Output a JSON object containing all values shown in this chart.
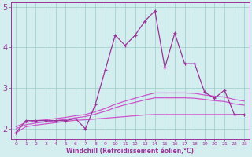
{
  "x": [
    0,
    1,
    2,
    3,
    4,
    5,
    6,
    7,
    8,
    9,
    10,
    11,
    12,
    13,
    14,
    15,
    16,
    17,
    18,
    19,
    20,
    21,
    22,
    23
  ],
  "line_spiky": [
    1.9,
    2.2,
    2.2,
    2.2,
    2.2,
    2.2,
    2.25,
    2.0,
    2.6,
    3.45,
    4.3,
    4.05,
    4.3,
    4.65,
    4.9,
    3.5,
    4.35,
    3.6,
    3.6,
    2.9,
    2.75,
    2.95,
    2.35,
    2.35
  ],
  "smooth_top": [
    2.05,
    2.15,
    2.2,
    2.22,
    2.25,
    2.28,
    2.32,
    2.35,
    2.42,
    2.5,
    2.6,
    2.68,
    2.75,
    2.82,
    2.88,
    2.88,
    2.88,
    2.88,
    2.87,
    2.83,
    2.8,
    2.78,
    2.72,
    2.68
  ],
  "smooth_mid": [
    2.0,
    2.1,
    2.14,
    2.17,
    2.2,
    2.23,
    2.27,
    2.3,
    2.36,
    2.43,
    2.52,
    2.59,
    2.65,
    2.71,
    2.76,
    2.76,
    2.76,
    2.76,
    2.75,
    2.72,
    2.69,
    2.67,
    2.61,
    2.58
  ],
  "smooth_bot": [
    1.9,
    2.05,
    2.09,
    2.12,
    2.15,
    2.18,
    2.21,
    2.22,
    2.24,
    2.26,
    2.28,
    2.3,
    2.32,
    2.34,
    2.35,
    2.35,
    2.35,
    2.35,
    2.35,
    2.35,
    2.35,
    2.35,
    2.35,
    2.35
  ],
  "line_color": "#993399",
  "smooth_color": "#cc55cc",
  "background": "#d4eef0",
  "grid_color": "#99cccc",
  "ylim": [
    1.75,
    5.1
  ],
  "xlim": [
    -0.5,
    23.5
  ],
  "xlabel": "Windchill (Refroidissement éolien,°C)",
  "ytick_vals": [
    2,
    3,
    4,
    5
  ],
  "ytick_labels": [
    "2",
    "3",
    "4",
    "5"
  ],
  "xticks": [
    0,
    1,
    2,
    3,
    4,
    5,
    6,
    7,
    8,
    9,
    10,
    11,
    12,
    13,
    14,
    15,
    16,
    17,
    18,
    19,
    20,
    21,
    22,
    23
  ]
}
